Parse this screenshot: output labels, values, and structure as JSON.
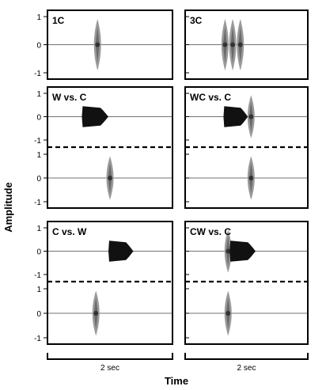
{
  "chart_data": {
    "type": "waveform-panels",
    "ylabel": "Amplitude",
    "xlabel": "Time",
    "scale_bar_label": "2 sec",
    "yticks": [
      1,
      0,
      -1
    ],
    "ylim": [
      -1,
      1
    ],
    "xlim": [
      0,
      4
    ],
    "panels": [
      {
        "id": "1C",
        "label": "1C",
        "column": 0,
        "row": 0,
        "tracks": [
          [
            {
              "kind": "click",
              "t": 1.6,
              "amp": 0.92
            }
          ]
        ]
      },
      {
        "id": "3C",
        "label": "3C",
        "column": 1,
        "row": 0,
        "tracks": [
          [
            {
              "kind": "click",
              "t": 1.3,
              "amp": 0.92
            },
            {
              "kind": "click",
              "t": 1.55,
              "amp": 0.92
            },
            {
              "kind": "click",
              "t": 1.8,
              "amp": 0.92
            }
          ]
        ]
      },
      {
        "id": "WvsC",
        "label": "W vs. C",
        "column": 0,
        "row": 1,
        "tracks": [
          [
            {
              "kind": "whistle",
              "t0": 1.1,
              "t1": 1.95,
              "amp": 0.45
            }
          ],
          [
            {
              "kind": "click",
              "t": 2.0,
              "amp": 0.92
            }
          ]
        ]
      },
      {
        "id": "WCvsC",
        "label": "WC vs. C",
        "column": 1,
        "row": 1,
        "tracks": [
          [
            {
              "kind": "whistle",
              "t0": 1.25,
              "t1": 2.05,
              "amp": 0.45
            },
            {
              "kind": "click",
              "t": 2.15,
              "amp": 0.92
            }
          ],
          [
            {
              "kind": "click",
              "t": 2.15,
              "amp": 0.92
            }
          ]
        ]
      },
      {
        "id": "CvsW",
        "label": "C vs. W",
        "column": 0,
        "row": 2,
        "tracks": [
          [
            {
              "kind": "whistle",
              "t0": 1.95,
              "t1": 2.75,
              "amp": 0.45
            }
          ],
          [
            {
              "kind": "click",
              "t": 1.55,
              "amp": 0.92
            }
          ]
        ]
      },
      {
        "id": "CWvsC",
        "label": "CW vs. C",
        "column": 1,
        "row": 2,
        "tracks": [
          [
            {
              "kind": "click",
              "t": 1.4,
              "amp": 0.92
            },
            {
              "kind": "whistle",
              "t0": 1.45,
              "t1": 2.3,
              "amp": 0.45
            }
          ],
          [
            {
              "kind": "click",
              "t": 1.4,
              "amp": 0.92
            }
          ]
        ]
      }
    ]
  }
}
